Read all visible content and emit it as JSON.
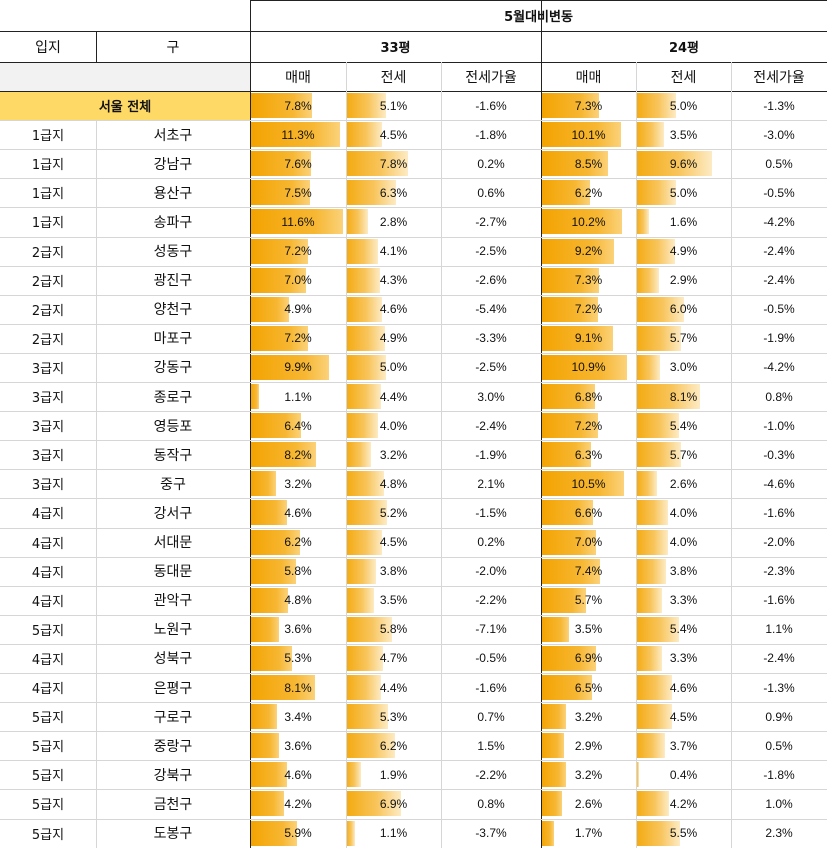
{
  "header": {
    "title": "5월대비변동",
    "col_location": "입지",
    "col_district": "구",
    "group_33": "33평",
    "group_24": "24평",
    "sub_sale": "매매",
    "sub_jeonse": "전세",
    "sub_ratio": "전세가율"
  },
  "colors": {
    "summary_row_bg": "#ffd966",
    "bar_sale": "#f3a300",
    "bar_jeonse": "#f8c45a"
  },
  "summary": {
    "label": "서울 전체",
    "p33": {
      "sale": "7.8%",
      "jeonse": "5.1%",
      "ratio": "-1.6%"
    },
    "p24": {
      "sale": "7.3%",
      "jeonse": "5.0%",
      "ratio": "-1.3%"
    }
  },
  "rows": [
    {
      "tier": "1급지",
      "gu": "서초구",
      "p33": {
        "sale": "11.3%",
        "jeonse": "4.5%",
        "ratio": "-1.8%"
      },
      "p24": {
        "sale": "10.1%",
        "jeonse": "3.5%",
        "ratio": "-3.0%"
      }
    },
    {
      "tier": "1급지",
      "gu": "강남구",
      "p33": {
        "sale": "7.6%",
        "jeonse": "7.8%",
        "ratio": "0.2%"
      },
      "p24": {
        "sale": "8.5%",
        "jeonse": "9.6%",
        "ratio": "0.5%"
      }
    },
    {
      "tier": "1급지",
      "gu": "용산구",
      "p33": {
        "sale": "7.5%",
        "jeonse": "6.3%",
        "ratio": "0.6%"
      },
      "p24": {
        "sale": "6.2%",
        "jeonse": "5.0%",
        "ratio": "-0.5%"
      }
    },
    {
      "tier": "1급지",
      "gu": "송파구",
      "p33": {
        "sale": "11.6%",
        "jeonse": "2.8%",
        "ratio": "-2.7%"
      },
      "p24": {
        "sale": "10.2%",
        "jeonse": "1.6%",
        "ratio": "-4.2%"
      }
    },
    {
      "tier": "2급지",
      "gu": "성동구",
      "p33": {
        "sale": "7.2%",
        "jeonse": "4.1%",
        "ratio": "-2.5%"
      },
      "p24": {
        "sale": "9.2%",
        "jeonse": "4.9%",
        "ratio": "-2.4%"
      }
    },
    {
      "tier": "2급지",
      "gu": "광진구",
      "p33": {
        "sale": "7.0%",
        "jeonse": "4.3%",
        "ratio": "-2.6%"
      },
      "p24": {
        "sale": "7.3%",
        "jeonse": "2.9%",
        "ratio": "-2.4%"
      }
    },
    {
      "tier": "2급지",
      "gu": "양천구",
      "p33": {
        "sale": "4.9%",
        "jeonse": "4.6%",
        "ratio": "-5.4%"
      },
      "p24": {
        "sale": "7.2%",
        "jeonse": "6.0%",
        "ratio": "-0.5%"
      }
    },
    {
      "tier": "2급지",
      "gu": "마포구",
      "p33": {
        "sale": "7.2%",
        "jeonse": "4.9%",
        "ratio": "-3.3%"
      },
      "p24": {
        "sale": "9.1%",
        "jeonse": "5.7%",
        "ratio": "-1.9%"
      }
    },
    {
      "tier": "3급지",
      "gu": "강동구",
      "p33": {
        "sale": "9.9%",
        "jeonse": "5.0%",
        "ratio": "-2.5%"
      },
      "p24": {
        "sale": "10.9%",
        "jeonse": "3.0%",
        "ratio": "-4.2%"
      }
    },
    {
      "tier": "3급지",
      "gu": "종로구",
      "p33": {
        "sale": "1.1%",
        "jeonse": "4.4%",
        "ratio": "3.0%"
      },
      "p24": {
        "sale": "6.8%",
        "jeonse": "8.1%",
        "ratio": "0.8%"
      }
    },
    {
      "tier": "3급지",
      "gu": "영등포",
      "p33": {
        "sale": "6.4%",
        "jeonse": "4.0%",
        "ratio": "-2.4%"
      },
      "p24": {
        "sale": "7.2%",
        "jeonse": "5.4%",
        "ratio": "-1.0%"
      }
    },
    {
      "tier": "3급지",
      "gu": "동작구",
      "p33": {
        "sale": "8.2%",
        "jeonse": "3.2%",
        "ratio": "-1.9%"
      },
      "p24": {
        "sale": "6.3%",
        "jeonse": "5.7%",
        "ratio": "-0.3%"
      }
    },
    {
      "tier": "3급지",
      "gu": "중구",
      "p33": {
        "sale": "3.2%",
        "jeonse": "4.8%",
        "ratio": "2.1%"
      },
      "p24": {
        "sale": "10.5%",
        "jeonse": "2.6%",
        "ratio": "-4.6%"
      }
    },
    {
      "tier": "4급지",
      "gu": "강서구",
      "p33": {
        "sale": "4.6%",
        "jeonse": "5.2%",
        "ratio": "-1.5%"
      },
      "p24": {
        "sale": "6.6%",
        "jeonse": "4.0%",
        "ratio": "-1.6%"
      }
    },
    {
      "tier": "4급지",
      "gu": "서대문",
      "p33": {
        "sale": "6.2%",
        "jeonse": "4.5%",
        "ratio": "0.2%"
      },
      "p24": {
        "sale": "7.0%",
        "jeonse": "4.0%",
        "ratio": "-2.0%"
      }
    },
    {
      "tier": "4급지",
      "gu": "동대문",
      "p33": {
        "sale": "5.8%",
        "jeonse": "3.8%",
        "ratio": "-2.0%"
      },
      "p24": {
        "sale": "7.4%",
        "jeonse": "3.8%",
        "ratio": "-2.3%"
      }
    },
    {
      "tier": "4급지",
      "gu": "관악구",
      "p33": {
        "sale": "4.8%",
        "jeonse": "3.5%",
        "ratio": "-2.2%"
      },
      "p24": {
        "sale": "5.7%",
        "jeonse": "3.3%",
        "ratio": "-1.6%"
      }
    },
    {
      "tier": "5급지",
      "gu": "노원구",
      "p33": {
        "sale": "3.6%",
        "jeonse": "5.8%",
        "ratio": "-7.1%"
      },
      "p24": {
        "sale": "3.5%",
        "jeonse": "5.4%",
        "ratio": "1.1%"
      }
    },
    {
      "tier": "4급지",
      "gu": "성북구",
      "p33": {
        "sale": "5.3%",
        "jeonse": "4.7%",
        "ratio": "-0.5%"
      },
      "p24": {
        "sale": "6.9%",
        "jeonse": "3.3%",
        "ratio": "-2.4%"
      }
    },
    {
      "tier": "4급지",
      "gu": "은평구",
      "p33": {
        "sale": "8.1%",
        "jeonse": "4.4%",
        "ratio": "-1.6%"
      },
      "p24": {
        "sale": "6.5%",
        "jeonse": "4.6%",
        "ratio": "-1.3%"
      }
    },
    {
      "tier": "5급지",
      "gu": "구로구",
      "p33": {
        "sale": "3.4%",
        "jeonse": "5.3%",
        "ratio": "0.7%"
      },
      "p24": {
        "sale": "3.2%",
        "jeonse": "4.5%",
        "ratio": "0.9%"
      }
    },
    {
      "tier": "5급지",
      "gu": "중랑구",
      "p33": {
        "sale": "3.6%",
        "jeonse": "6.2%",
        "ratio": "1.5%"
      },
      "p24": {
        "sale": "2.9%",
        "jeonse": "3.7%",
        "ratio": "0.5%"
      }
    },
    {
      "tier": "5급지",
      "gu": "강북구",
      "p33": {
        "sale": "4.6%",
        "jeonse": "1.9%",
        "ratio": "-2.2%"
      },
      "p24": {
        "sale": "3.2%",
        "jeonse": "0.4%",
        "ratio": "-1.8%"
      }
    },
    {
      "tier": "5급지",
      "gu": "금천구",
      "p33": {
        "sale": "4.2%",
        "jeonse": "6.9%",
        "ratio": "0.8%"
      },
      "p24": {
        "sale": "2.6%",
        "jeonse": "4.2%",
        "ratio": "1.0%"
      }
    },
    {
      "tier": "5급지",
      "gu": "도봉구",
      "p33": {
        "sale": "5.9%",
        "jeonse": "1.1%",
        "ratio": "-3.7%"
      },
      "p24": {
        "sale": "1.7%",
        "jeonse": "5.5%",
        "ratio": "2.3%"
      }
    }
  ]
}
